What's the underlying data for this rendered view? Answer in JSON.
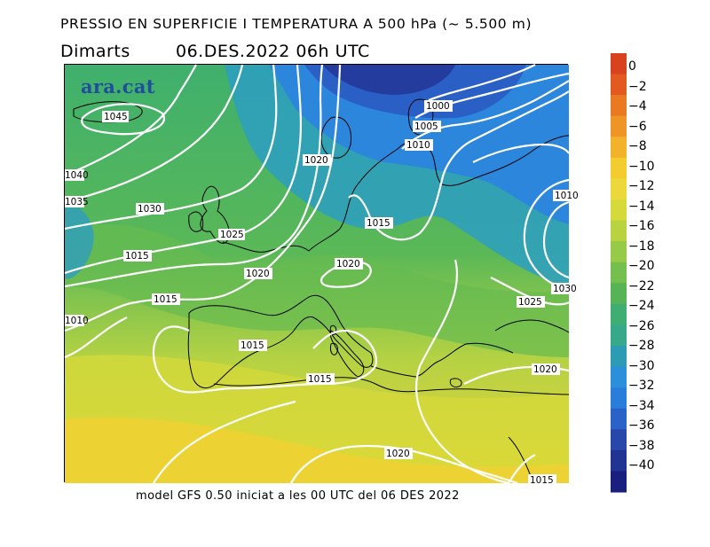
{
  "header": {
    "title": "PRESSIO EN SUPERFICIE I TEMPERATURA A 500 hPa (~ 5.500 m)",
    "day": "Dimarts",
    "datetime": "06.DES.2022 06h UTC"
  },
  "footer": "model GFS 0.50 iniciat a les 00 UTC del 06 DES 2022",
  "logo": "ara.cat",
  "map": {
    "isobar_labels": [
      "1045",
      "1040",
      "1035",
      "1030",
      "1025",
      "1020",
      "1015",
      "1010",
      "1005",
      "1000",
      "1020",
      "1015",
      "1015",
      "1020",
      "1015",
      "1020",
      "1025",
      "1020",
      "1015",
      "1010",
      "1015",
      "1010",
      "1030"
    ]
  },
  "colorbar": {
    "labels": [
      "0",
      "−2",
      "−4",
      "−6",
      "−8",
      "−10",
      "−12",
      "−14",
      "−16",
      "−18",
      "−20",
      "−22",
      "−24",
      "−26",
      "−28",
      "−30",
      "−32",
      "−34",
      "−36",
      "−38",
      "−40"
    ],
    "colors": [
      "#d8421e",
      "#e25a1f",
      "#ea7a22",
      "#ef9526",
      "#f2b22a",
      "#f3cd2f",
      "#ecd83a",
      "#d6d93a",
      "#b8d33f",
      "#96ca47",
      "#75bf4e",
      "#56b457",
      "#3fae72",
      "#35a98a",
      "#2c9cb5",
      "#2b8fdc",
      "#2a7ddb",
      "#2a62c7",
      "#2748aa",
      "#213494",
      "#1a1e7e"
    ]
  }
}
